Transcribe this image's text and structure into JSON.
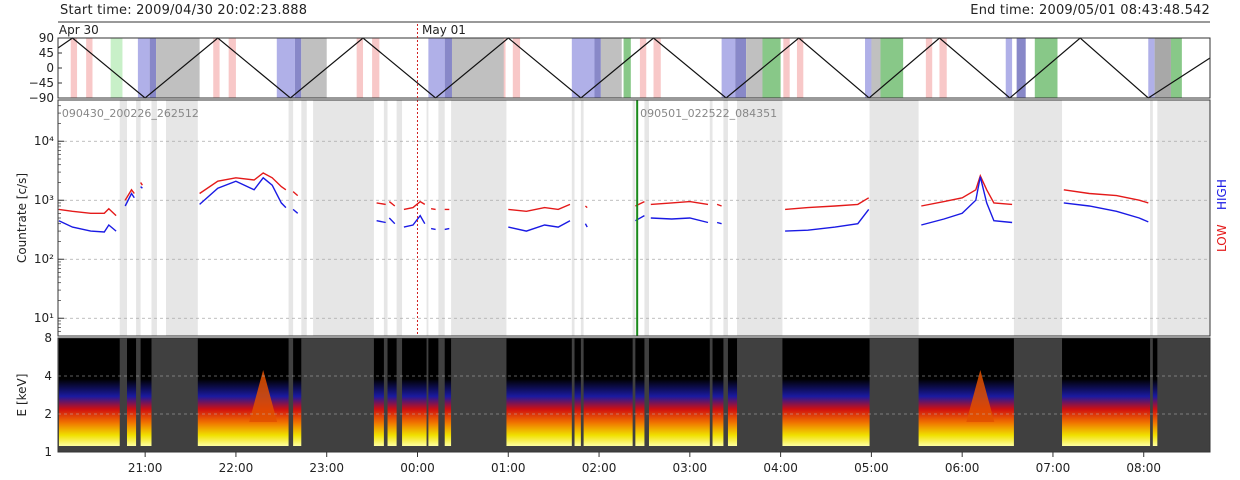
{
  "header": {
    "start_time": "Start time: 2009/04/30 20:02:23.888",
    "end_time": "End time: 2009/05/01 08:43:48.542"
  },
  "chart_data": [
    {
      "type": "line",
      "panel": "orbit",
      "title": "",
      "date_labels": [
        "Apr 30",
        "May 01"
      ],
      "ylabel": "",
      "y_ticks": [
        "90",
        "45",
        "0",
        "−45",
        "−90"
      ],
      "ylim": [
        -90,
        90
      ],
      "xlim_hours": [
        20.04,
        32.73
      ],
      "curve": "triangle wave, period ~1.6 h, peaks near 20.2, 21.8, 23.4, 25.0, 26.6, 28.2, 29.7, 31.3 h",
      "bands": [
        {
          "color": "#f8c8c8",
          "hours": [
            [
              20.18,
              20.25
            ],
            [
              20.35,
              20.42
            ],
            [
              21.75,
              21.82
            ],
            [
              21.92,
              22.0
            ],
            [
              23.33,
              23.4
            ],
            [
              23.5,
              23.58
            ],
            [
              24.9,
              24.97
            ],
            [
              25.05,
              25.13
            ],
            [
              26.45,
              26.52
            ],
            [
              26.6,
              26.68
            ],
            [
              28.03,
              28.1
            ],
            [
              28.18,
              28.25
            ],
            [
              29.6,
              29.67
            ],
            [
              29.75,
              29.83
            ]
          ]
        },
        {
          "color": "#c8f0c8",
          "hours": [
            [
              20.62,
              20.75
            ]
          ]
        },
        {
          "color": "#b0b0e8",
          "hours": [
            [
              20.92,
              21.05
            ],
            [
              22.45,
              22.65
            ],
            [
              24.12,
              24.3
            ],
            [
              25.7,
              25.95
            ],
            [
              27.35,
              27.5
            ],
            [
              28.93,
              29.05
            ],
            [
              30.48,
              30.55
            ],
            [
              32.05,
              32.12
            ]
          ]
        },
        {
          "color": "#8888c8",
          "hours": [
            [
              21.05,
              21.12
            ],
            [
              22.65,
              22.72
            ],
            [
              24.3,
              24.38
            ],
            [
              25.95,
              26.02
            ],
            [
              27.5,
              27.62
            ],
            [
              30.6,
              30.7
            ]
          ]
        },
        {
          "color": "#c0c0c0",
          "hours": [
            [
              21.12,
              21.6
            ],
            [
              22.72,
              23.0
            ],
            [
              24.38,
              24.95
            ],
            [
              26.02,
              26.25
            ],
            [
              27.62,
              27.82
            ],
            [
              29.0,
              29.1
            ]
          ]
        },
        {
          "color": "#88c888",
          "hours": [
            [
              26.27,
              26.35
            ],
            [
              27.8,
              28.0
            ],
            [
              29.1,
              29.35
            ],
            [
              30.8,
              31.05
            ],
            [
              32.3,
              32.42
            ]
          ]
        },
        {
          "color": "#a8a8a8",
          "hours": [
            [
              32.12,
              32.3
            ]
          ]
        }
      ]
    },
    {
      "type": "line",
      "panel": "countrate",
      "title": "",
      "ylabel": "Countrate [c/s]",
      "yscale": "log",
      "ylim": [
        5,
        50000
      ],
      "y_ticks": [
        "10¹",
        "10²",
        "10³",
        "10⁴"
      ],
      "y_tick_values": [
        10,
        100,
        1000,
        10000
      ],
      "annotations": [
        {
          "text": "090430_200226_262512",
          "hour": 20.05
        },
        {
          "text": "090501_022522_084351",
          "hour": 26.42
        }
      ],
      "dashed_midnight_hour": 24.0,
      "event_line": {
        "hour": 26.42,
        "color": "#1a8a1a"
      },
      "right_labels": [
        "LOW",
        "HIGH"
      ],
      "gray_gaps_hours": [
        [
          20.72,
          20.8
        ],
        [
          20.9,
          20.95
        ],
        [
          21.07,
          21.13
        ],
        [
          21.23,
          21.58
        ],
        [
          22.58,
          22.63
        ],
        [
          22.72,
          22.78
        ],
        [
          22.85,
          23.52
        ],
        [
          23.63,
          23.67
        ],
        [
          23.77,
          23.83
        ],
        [
          24.1,
          24.12
        ],
        [
          24.23,
          24.3
        ],
        [
          24.37,
          24.98
        ],
        [
          25.7,
          25.73
        ],
        [
          25.8,
          25.83
        ],
        [
          26.37,
          26.4
        ],
        [
          26.5,
          26.55
        ],
        [
          27.22,
          27.25
        ],
        [
          27.37,
          27.42
        ],
        [
          27.52,
          28.02
        ],
        [
          28.98,
          29.52
        ],
        [
          30.57,
          31.1
        ],
        [
          32.07,
          32.1
        ],
        [
          32.15,
          32.73
        ]
      ],
      "series": [
        {
          "name": "LOW",
          "color": "#e41a1a",
          "points": [
            [
              20.05,
              700
            ],
            [
              20.2,
              650
            ],
            [
              20.4,
              600
            ],
            [
              20.55,
              600
            ],
            [
              20.6,
              720
            ],
            [
              20.68,
              550
            ],
            [
              null,
              null
            ],
            [
              20.78,
              1000
            ],
            [
              20.85,
              1500
            ],
            [
              20.88,
              1300
            ],
            [
              null,
              null
            ],
            [
              20.95,
              2000
            ],
            [
              20.97,
              1800
            ],
            [
              null,
              null
            ],
            [
              21.6,
              1300
            ],
            [
              21.8,
              2100
            ],
            [
              22.0,
              2400
            ],
            [
              22.2,
              2200
            ],
            [
              22.3,
              2900
            ],
            [
              22.4,
              2400
            ],
            [
              22.5,
              1700
            ],
            [
              22.55,
              1500
            ],
            [
              null,
              null
            ],
            [
              22.63,
              1400
            ],
            [
              22.68,
              1200
            ],
            [
              null,
              null
            ],
            [
              23.55,
              900
            ],
            [
              23.65,
              850
            ],
            [
              null,
              null
            ],
            [
              23.69,
              950
            ],
            [
              23.75,
              800
            ],
            [
              null,
              null
            ],
            [
              23.85,
              700
            ],
            [
              23.95,
              750
            ],
            [
              24.03,
              950
            ],
            [
              24.08,
              850
            ],
            [
              null,
              null
            ],
            [
              24.15,
              720
            ],
            [
              24.2,
              700
            ],
            [
              null,
              null
            ],
            [
              24.3,
              700
            ],
            [
              24.35,
              700
            ],
            [
              null,
              null
            ],
            [
              25.0,
              700
            ],
            [
              25.2,
              650
            ],
            [
              25.4,
              750
            ],
            [
              25.55,
              700
            ],
            [
              25.68,
              850
            ],
            [
              null,
              null
            ],
            [
              25.85,
              800
            ],
            [
              25.87,
              750
            ],
            [
              null,
              null
            ],
            [
              26.4,
              800
            ],
            [
              26.5,
              950
            ],
            [
              null,
              null
            ],
            [
              26.57,
              850
            ],
            [
              26.8,
              900
            ],
            [
              27.0,
              950
            ],
            [
              27.2,
              850
            ],
            [
              null,
              null
            ],
            [
              27.3,
              850
            ],
            [
              27.35,
              800
            ],
            [
              null,
              null
            ],
            [
              28.05,
              700
            ],
            [
              28.3,
              750
            ],
            [
              28.6,
              800
            ],
            [
              28.85,
              850
            ],
            [
              28.97,
              1100
            ],
            [
              null,
              null
            ],
            [
              29.55,
              800
            ],
            [
              29.8,
              950
            ],
            [
              30.0,
              1100
            ],
            [
              30.15,
              1500
            ],
            [
              30.2,
              2600
            ],
            [
              30.27,
              1500
            ],
            [
              30.35,
              900
            ],
            [
              30.55,
              850
            ],
            [
              null,
              null
            ],
            [
              31.12,
              1500
            ],
            [
              31.4,
              1300
            ],
            [
              31.7,
              1200
            ],
            [
              31.95,
              1000
            ],
            [
              32.05,
              900
            ]
          ]
        },
        {
          "name": "HIGH",
          "color": "#1a1ae4",
          "points": [
            [
              20.05,
              450
            ],
            [
              20.2,
              350
            ],
            [
              20.4,
              300
            ],
            [
              20.55,
              290
            ],
            [
              20.6,
              380
            ],
            [
              20.68,
              300
            ],
            [
              null,
              null
            ],
            [
              20.78,
              800
            ],
            [
              20.85,
              1300
            ],
            [
              20.88,
              1100
            ],
            [
              null,
              null
            ],
            [
              20.95,
              1700
            ],
            [
              20.97,
              1600
            ],
            [
              null,
              null
            ],
            [
              21.6,
              850
            ],
            [
              21.8,
              1600
            ],
            [
              22.0,
              2100
            ],
            [
              22.2,
              1500
            ],
            [
              22.3,
              2400
            ],
            [
              22.4,
              1800
            ],
            [
              22.5,
              900
            ],
            [
              22.55,
              750
            ],
            [
              null,
              null
            ],
            [
              22.63,
              700
            ],
            [
              22.68,
              600
            ],
            [
              null,
              null
            ],
            [
              23.55,
              450
            ],
            [
              23.65,
              420
            ],
            [
              null,
              null
            ],
            [
              23.69,
              500
            ],
            [
              23.75,
              400
            ],
            [
              null,
              null
            ],
            [
              23.85,
              350
            ],
            [
              23.95,
              380
            ],
            [
              24.03,
              550
            ],
            [
              24.08,
              400
            ],
            [
              null,
              null
            ],
            [
              24.15,
              330
            ],
            [
              24.2,
              320
            ],
            [
              null,
              null
            ],
            [
              24.3,
              320
            ],
            [
              24.35,
              330
            ],
            [
              null,
              null
            ],
            [
              25.0,
              350
            ],
            [
              25.2,
              300
            ],
            [
              25.4,
              380
            ],
            [
              25.55,
              350
            ],
            [
              25.68,
              450
            ],
            [
              null,
              null
            ],
            [
              25.85,
              400
            ],
            [
              25.87,
              350
            ],
            [
              null,
              null
            ],
            [
              26.4,
              450
            ],
            [
              26.5,
              550
            ],
            [
              null,
              null
            ],
            [
              26.57,
              500
            ],
            [
              26.8,
              480
            ],
            [
              27.0,
              500
            ],
            [
              27.2,
              420
            ],
            [
              null,
              null
            ],
            [
              27.3,
              420
            ],
            [
              27.35,
              400
            ],
            [
              null,
              null
            ],
            [
              28.05,
              300
            ],
            [
              28.3,
              310
            ],
            [
              28.6,
              350
            ],
            [
              28.85,
              400
            ],
            [
              28.97,
              700
            ],
            [
              null,
              null
            ],
            [
              29.55,
              380
            ],
            [
              29.8,
              480
            ],
            [
              30.0,
              600
            ],
            [
              30.15,
              1000
            ],
            [
              30.2,
              2500
            ],
            [
              30.27,
              900
            ],
            [
              30.35,
              450
            ],
            [
              30.55,
              420
            ],
            [
              null,
              null
            ],
            [
              31.12,
              900
            ],
            [
              31.4,
              800
            ],
            [
              31.7,
              650
            ],
            [
              31.95,
              500
            ],
            [
              32.05,
              430
            ]
          ]
        }
      ]
    },
    {
      "type": "heatmap",
      "panel": "spectrogram",
      "title": "",
      "ylabel": "E [keV]",
      "yscale": "log",
      "ylim": [
        1,
        8
      ],
      "y_ticks": [
        "1",
        "2",
        "4",
        "8"
      ],
      "y_tick_values": [
        1,
        2,
        4,
        8
      ],
      "colorscale": [
        "#000000",
        "#1a1aa0",
        "#d01010",
        "#f07000",
        "#f0e000",
        "#ffffa0"
      ],
      "data_intervals_hours": [
        [
          20.05,
          20.72
        ],
        [
          20.8,
          20.9
        ],
        [
          20.95,
          21.07
        ],
        [
          21.58,
          22.58
        ],
        [
          22.63,
          22.72
        ],
        [
          23.52,
          23.63
        ],
        [
          23.67,
          23.77
        ],
        [
          23.83,
          24.1
        ],
        [
          24.12,
          24.23
        ],
        [
          24.3,
          24.37
        ],
        [
          24.98,
          25.7
        ],
        [
          25.73,
          25.8
        ],
        [
          25.83,
          26.37
        ],
        [
          26.4,
          26.5
        ],
        [
          26.55,
          27.22
        ],
        [
          27.25,
          27.37
        ],
        [
          27.42,
          27.52
        ],
        [
          28.02,
          28.98
        ],
        [
          29.52,
          30.57
        ],
        [
          31.1,
          32.07
        ],
        [
          32.1,
          32.15
        ]
      ],
      "flare_hours": [
        22.3,
        30.2
      ]
    }
  ],
  "time_axis": {
    "tick_labels": [
      "21:00",
      "22:00",
      "23:00",
      "00:00",
      "01:00",
      "02:00",
      "03:00",
      "04:00",
      "05:00",
      "06:00",
      "07:00",
      "08:00"
    ],
    "tick_hours": [
      21,
      22,
      23,
      24,
      25,
      26,
      27,
      28,
      29,
      30,
      31,
      32
    ]
  }
}
